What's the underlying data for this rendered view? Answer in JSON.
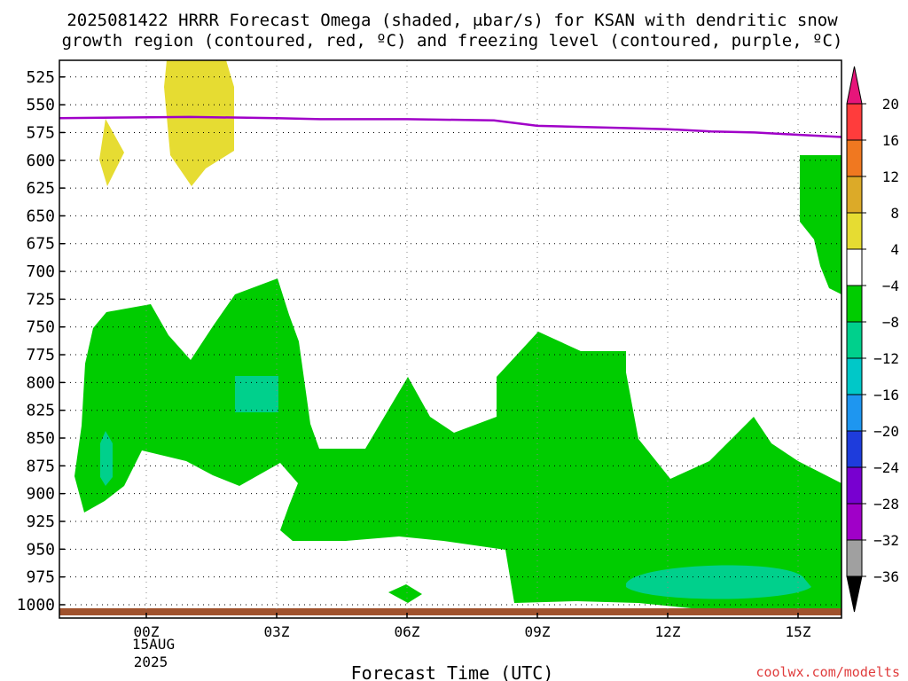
{
  "title": {
    "line1": "2025081422 HRRR Forecast Omega (shaded, μbar/s) for KSAN with dendritic snow",
    "line2": "growth region (contoured, red, ºC) and freezing level (contoured, purple, ºC)"
  },
  "xlabel": "Forecast Time (UTC)",
  "date_label": {
    "day": "15AUG",
    "year": "2025"
  },
  "watermark": "coolwx.com/modelts",
  "colors": {
    "green": "#00cc00",
    "teal": "#00d08c",
    "yellow": "#e6dc32",
    "purple_line": "#a000c8",
    "ground": "#a0522d"
  },
  "chart_data": {
    "type": "heatmap",
    "x_ticks": [
      "00Z",
      "03Z",
      "06Z",
      "09Z",
      "12Z",
      "15Z"
    ],
    "x_tick_hours": [
      0,
      3,
      6,
      9,
      12,
      15
    ],
    "xlim_hours": [
      -2,
      16
    ],
    "y_ticks": [
      525,
      550,
      575,
      600,
      625,
      650,
      675,
      700,
      725,
      750,
      775,
      800,
      825,
      850,
      875,
      900,
      925,
      950,
      975,
      1000
    ],
    "ylim_hPa": [
      510,
      1012
    ],
    "grid": true,
    "freezing_level": {
      "name": "freezing level",
      "hours": [
        -2,
        1,
        3,
        4,
        6,
        8,
        9,
        11,
        12,
        13,
        14,
        15,
        16
      ],
      "pressure_hPa": [
        562,
        561,
        562,
        563,
        563,
        564,
        569,
        571,
        572,
        574,
        575,
        577,
        579
      ]
    },
    "colorbar": {
      "labels": [
        "20",
        "16",
        "12",
        "8",
        "4",
        "−4",
        "−8",
        "−12",
        "−16",
        "−20",
        "−24",
        "−28",
        "−32",
        "−36"
      ],
      "colors": [
        "#ff3c3c",
        "#f07820",
        "#dcaa28",
        "#e6dc32",
        "#ffffff",
        "#00cc00",
        "#00d08c",
        "#00c8c8",
        "#1e96f0",
        "#1e3cdc",
        "#7800d0",
        "#a000c8",
        "#a0a0a0"
      ],
      "top_color": "#e6157a",
      "bottom_color": "#000000"
    }
  }
}
